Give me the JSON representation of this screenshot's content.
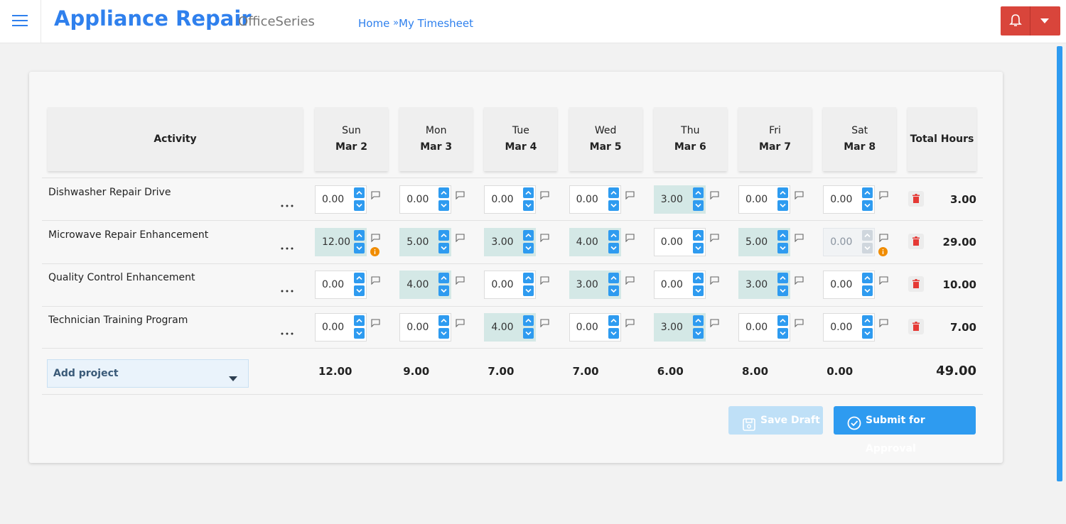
{
  "header": {
    "title": "Appliance Repair",
    "subtitle": "OfficeSeries",
    "breadcrumb": [
      "Home",
      "My Timesheet"
    ],
    "separator": "»"
  },
  "table": {
    "activity_header": "Activity",
    "total_header": "Total Hours",
    "columns": [
      {
        "day": "Sun",
        "date": "Mar 2"
      },
      {
        "day": "Mon",
        "date": "Mar 3"
      },
      {
        "day": "Tue",
        "date": "Mar 4"
      },
      {
        "day": "Wed",
        "date": "Mar 5"
      },
      {
        "day": "Thu",
        "date": "Mar 6"
      },
      {
        "day": "Fri",
        "date": "Mar 7"
      },
      {
        "day": "Sat",
        "date": "Mar 8"
      }
    ],
    "rows": [
      {
        "name": "Dishwasher Repair Drive",
        "cells": [
          {
            "hours": "0.00"
          },
          {
            "hours": "0.00"
          },
          {
            "hours": "0.00"
          },
          {
            "hours": "0.00"
          },
          {
            "hours": "3.00"
          },
          {
            "hours": "0.00"
          },
          {
            "hours": "0.00"
          }
        ],
        "total": "3.00"
      },
      {
        "name": "Microwave Repair Enhancement",
        "cells": [
          {
            "hours": "12.00",
            "warning": true
          },
          {
            "hours": "5.00"
          },
          {
            "hours": "3.00"
          },
          {
            "hours": "4.00"
          },
          {
            "hours": "0.00"
          },
          {
            "hours": "5.00"
          },
          {
            "hours": "0.00",
            "disabled": true,
            "warning": true
          }
        ],
        "total": "29.00"
      },
      {
        "name": "Quality Control Enhancement",
        "cells": [
          {
            "hours": "0.00"
          },
          {
            "hours": "4.00"
          },
          {
            "hours": "0.00"
          },
          {
            "hours": "3.00"
          },
          {
            "hours": "0.00"
          },
          {
            "hours": "3.00"
          },
          {
            "hours": "0.00"
          }
        ],
        "total": "10.00"
      },
      {
        "name": "Technician Training Program",
        "cells": [
          {
            "hours": "0.00"
          },
          {
            "hours": "0.00"
          },
          {
            "hours": "4.00"
          },
          {
            "hours": "0.00"
          },
          {
            "hours": "3.00"
          },
          {
            "hours": "0.00"
          },
          {
            "hours": "0.00"
          }
        ],
        "total": "7.00"
      }
    ],
    "footer": {
      "add_project": "Add project",
      "totals": [
        "12.00",
        "9.00",
        "7.00",
        "7.00",
        "6.00",
        "8.00",
        "0.00"
      ],
      "grand_total": "49.00"
    }
  },
  "actions": {
    "save": "Save Draft",
    "submit": "Submit for Approval"
  }
}
